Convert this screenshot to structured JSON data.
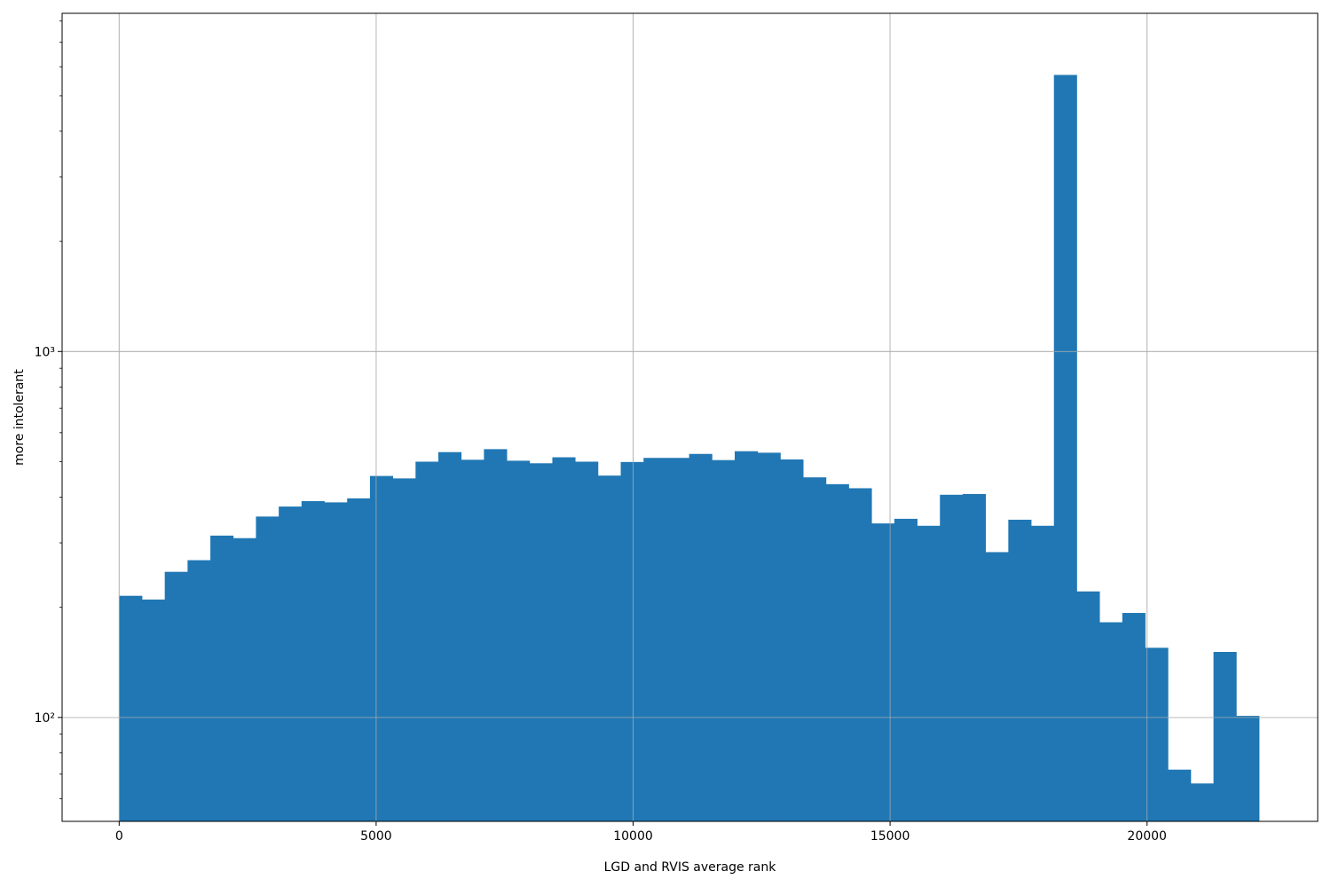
{
  "chart_data": {
    "type": "bar",
    "xlabel": "LGD and RVIS average rank",
    "ylabel": "more intolerant",
    "xlim": [
      -1110,
      23320
    ],
    "ylim": [
      52,
      8400
    ],
    "y_scale": "log",
    "grid": true,
    "x_ticks": [
      0,
      5000,
      10000,
      15000,
      20000
    ],
    "x_tick_labels": [
      "0",
      "5000",
      "10000",
      "15000",
      "20000"
    ],
    "y_ticks": [
      100,
      1000
    ],
    "y_tick_labels": [
      "10²",
      "10³"
    ],
    "bin_start": 0,
    "bin_width": 443.6,
    "values": [
      215,
      210,
      250,
      269,
      314,
      309,
      354,
      377,
      390,
      387,
      397,
      457,
      450,
      500,
      531,
      506,
      541,
      503,
      495,
      514,
      500,
      458,
      499,
      512,
      512,
      525,
      505,
      534,
      529,
      507,
      453,
      434,
      423,
      339,
      349,
      334,
      406,
      408,
      283,
      347,
      334,
      5700,
      221,
      182,
      193,
      155,
      72,
      66,
      151,
      101
    ],
    "bar_color": "#2077b4"
  }
}
